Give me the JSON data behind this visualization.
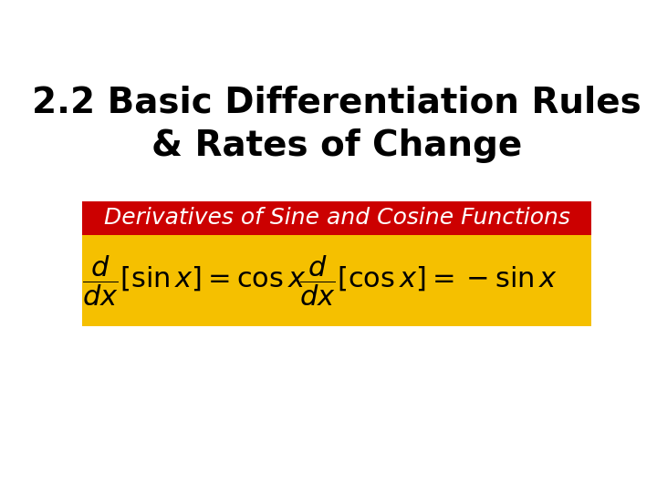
{
  "title": "2.2 Basic Differentiation Rules\n& Rates of Change",
  "title_fontsize": 28,
  "title_color": "#000000",
  "background_color": "#ffffff",
  "red_banner_color": "#cc0000",
  "yellow_banner_color": "#f5c000",
  "banner_text": "Derivatives of Sine and Cosine Functions",
  "banner_text_color": "#ffffff",
  "banner_text_fontsize": 18,
  "formula1": "$\\dfrac{d}{dx}[\\sin x] = \\cos x$",
  "formula2": "$\\dfrac{d}{dx}[\\cos x] = -\\sin x$",
  "formula_fontsize": 22,
  "formula_color": "#000000"
}
